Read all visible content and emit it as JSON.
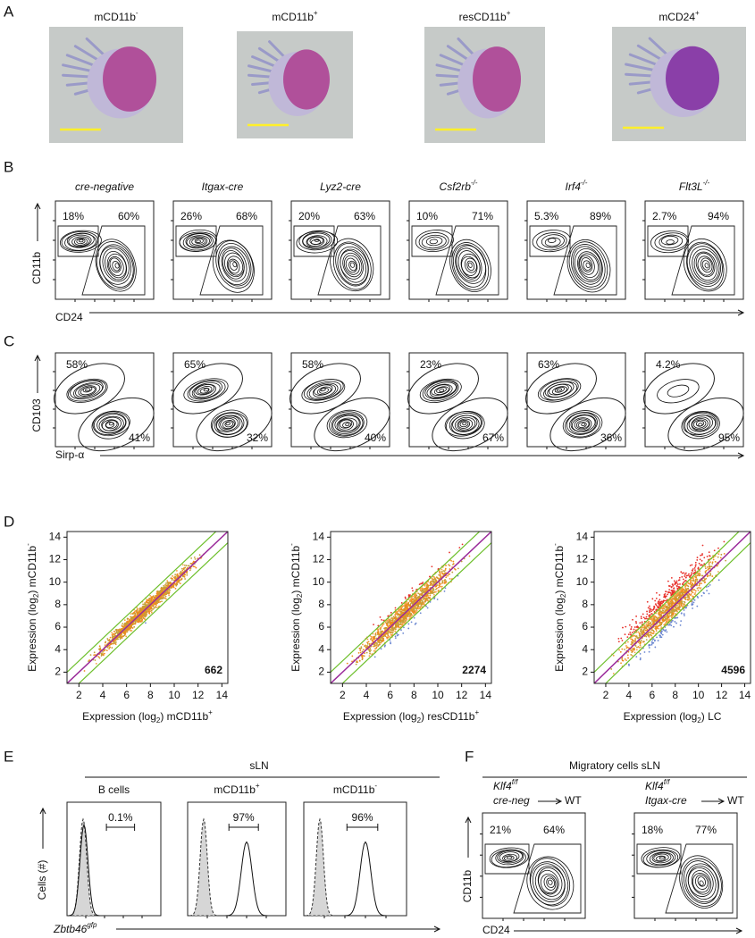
{
  "panel_a": {
    "label": "A",
    "cells": [
      {
        "name": "mCD11b",
        "sup": "-"
      },
      {
        "name": "mCD11b",
        "sup": "+"
      },
      {
        "name": "resCD11b",
        "sup": "+"
      },
      {
        "name": "mCD24",
        "sup": "+"
      }
    ]
  },
  "panel_b": {
    "label": "B",
    "y_axis": "CD11b",
    "x_axis": "CD24",
    "plots": [
      {
        "title": "cre-negative",
        "left": "18%",
        "right": "60%"
      },
      {
        "title": "Itgax-cre",
        "left": "26%",
        "right": "68%"
      },
      {
        "title": "Lyz2-cre",
        "left": "20%",
        "right": "63%"
      },
      {
        "title": "Csf2rb",
        "sup": "-/-",
        "left": "10%",
        "right": "71%"
      },
      {
        "title": "Irf4",
        "sup": "-/-",
        "left": "5.3%",
        "right": "89%"
      },
      {
        "title": "Flt3L",
        "sup": "-/-",
        "left": "2.7%",
        "right": "94%"
      }
    ]
  },
  "panel_c": {
    "label": "C",
    "y_axis": "CD103",
    "x_axis": "Sirp-α",
    "plots": [
      {
        "top": "58%",
        "bottom": "41%"
      },
      {
        "top": "65%",
        "bottom": "32%"
      },
      {
        "top": "58%",
        "bottom": "40%"
      },
      {
        "top": "23%",
        "bottom": "67%"
      },
      {
        "top": "63%",
        "bottom": "36%"
      },
      {
        "top": "4.2%",
        "bottom": "95%"
      }
    ]
  },
  "panel_d": {
    "label": "D",
    "lim": [
      1,
      14.5
    ],
    "ticks": [
      2,
      4,
      6,
      8,
      10,
      12,
      14
    ],
    "plots": [
      {
        "y_label": {
          "pre": "Expression (log",
          "sub": "2",
          "post": ") mCD11b",
          "sup": "-"
        },
        "x_label": {
          "pre": "Expression (log",
          "sub": "2",
          "post": ") mCD11b",
          "sup": "+"
        },
        "count": "662"
      },
      {
        "y_label": {
          "pre": "Expression (log",
          "sub": "2",
          "post": ") mCD11b",
          "sup": "-"
        },
        "x_label": {
          "pre": "Expression (log",
          "sub": "2",
          "post": ") resCD11b",
          "sup": "+"
        },
        "count": "2274"
      },
      {
        "y_label": {
          "pre": "Expression (log",
          "sub": "2",
          "post": ") mCD11b",
          "sup": "-"
        },
        "x_label": {
          "pre": "Expression (log",
          "sub": "2",
          "post": ") LC"
        },
        "count": "4596"
      }
    ]
  },
  "panel_e": {
    "label": "E",
    "header": "sLN",
    "y_axis": "Cells (#)",
    "x_axis": {
      "text": "Zbtb46",
      "sup": "gfp"
    },
    "plots": [
      {
        "title": "B cells",
        "pct": "0.1%"
      },
      {
        "title": "mCD11b",
        "sup": "+",
        "pct": "97%"
      },
      {
        "title": "mCD11b",
        "sup": "-",
        "pct": "96%"
      }
    ]
  },
  "panel_f": {
    "label": "F",
    "header": "Migratory cells sLN",
    "y_axis": "CD11b",
    "x_axis": "CD24",
    "groups": [
      {
        "donor": {
          "text": "Klf4",
          "sup": "f/f"
        },
        "line2": "cre-neg",
        "recipient": "WT",
        "left": "21%",
        "right": "64%"
      },
      {
        "donor": {
          "text": "Klf4",
          "sup": "f/f"
        },
        "line2": "Itgax-cre",
        "recipient": "WT",
        "left": "18%",
        "right": "77%"
      }
    ]
  }
}
